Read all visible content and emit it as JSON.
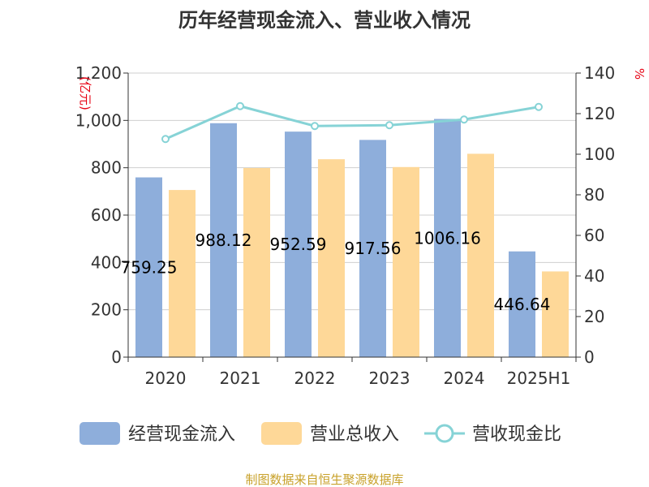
{
  "chart_data": {
    "type": "bar",
    "title": "历年经营现金流入、营业收入情况",
    "categories": [
      "2020",
      "2021",
      "2022",
      "2023",
      "2024",
      "2025H1"
    ],
    "series": [
      {
        "name": "经营现金流入",
        "type": "bar",
        "axis": "left",
        "color": "#8eaedb",
        "values": [
          759.25,
          988.12,
          952.59,
          917.56,
          1006.16,
          446.64
        ]
      },
      {
        "name": "营业总收入",
        "type": "bar",
        "axis": "left",
        "color": "#fed898",
        "values": [
          706,
          799,
          836,
          803,
          859,
          362
        ]
      },
      {
        "name": "营收现金比",
        "type": "line",
        "axis": "right",
        "color": "#86d3d6",
        "values": [
          107.5,
          123.7,
          113.9,
          114.3,
          117.1,
          123.3
        ]
      }
    ],
    "data_labels": [
      "759.25",
      "988.12",
      "952.59",
      "917.56",
      "1006.16",
      "446.64"
    ],
    "y_left": {
      "unit": "(亿元)",
      "min": 0,
      "max": 1200,
      "ticks": [
        "0",
        "200",
        "400",
        "600",
        "800",
        "1,000",
        "1,200"
      ]
    },
    "y_right": {
      "unit": "%",
      "min": 0,
      "max": 140,
      "ticks": [
        "0",
        "20",
        "40",
        "60",
        "80",
        "100",
        "120",
        "140"
      ]
    },
    "grid": true,
    "legend_position": "bottom"
  },
  "source": "制图数据来自恒生聚源数据库"
}
